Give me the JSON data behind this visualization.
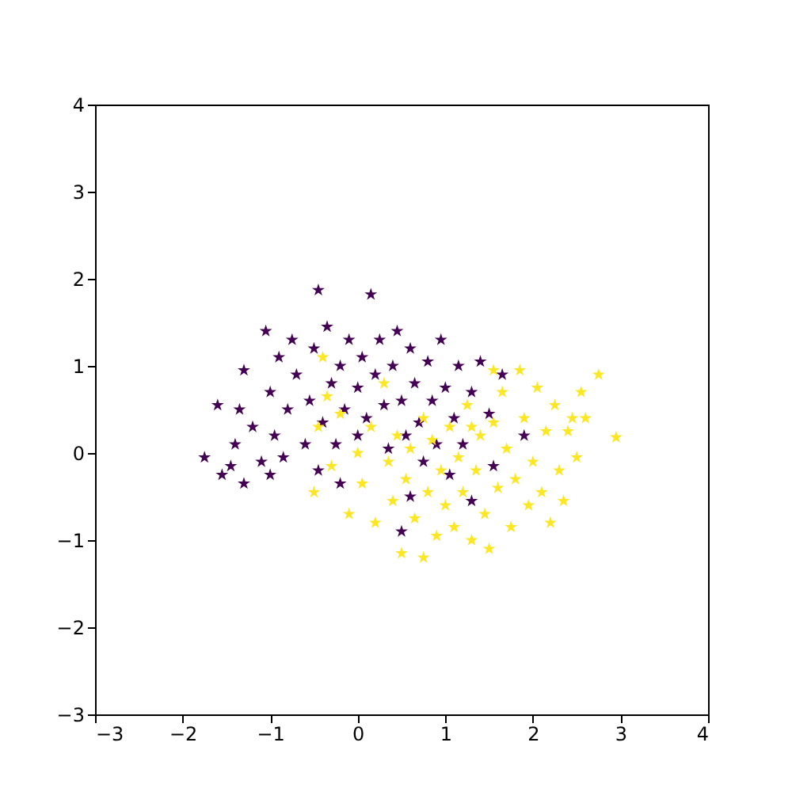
{
  "chart_data": {
    "type": "scatter",
    "marker": "star",
    "grid": false,
    "xlim": [
      -3,
      4
    ],
    "ylim": [
      -3,
      4
    ],
    "xticks": [
      -3,
      -2,
      -1,
      0,
      1,
      2,
      3,
      4
    ],
    "yticks": [
      -3,
      -2,
      -1,
      0,
      1,
      2,
      3,
      4
    ],
    "series": [
      {
        "color": "#440154",
        "x": [
          -1.75,
          -1.6,
          -1.55,
          -1.45,
          -1.3,
          -1.4,
          -1.35,
          -1.3,
          -1.2,
          -1.1,
          -1.05,
          -1.0,
          -0.95,
          -0.9,
          -0.85,
          -0.8,
          -0.75,
          -0.7,
          -0.6,
          -0.55,
          -0.5,
          -0.45,
          -0.45,
          -0.4,
          -0.35,
          -0.3,
          -0.25,
          -0.2,
          -0.15,
          -0.1,
          0.0,
          0.0,
          0.05,
          0.1,
          0.15,
          0.2,
          0.25,
          0.3,
          0.35,
          0.4,
          0.45,
          0.5,
          0.55,
          0.6,
          0.65,
          0.7,
          0.75,
          0.8,
          0.85,
          0.9,
          0.95,
          1.0,
          1.05,
          1.1,
          1.15,
          1.2,
          1.3,
          1.4,
          1.5,
          1.55,
          1.65,
          0.6,
          0.5,
          1.3,
          1.9,
          -1.0,
          -0.2
        ],
        "values": [
          -0.05,
          0.55,
          -0.25,
          -0.15,
          -0.35,
          0.1,
          0.5,
          0.95,
          0.3,
          -0.1,
          1.4,
          0.7,
          0.2,
          1.1,
          -0.05,
          0.5,
          1.3,
          0.9,
          0.1,
          0.6,
          1.2,
          1.87,
          -0.2,
          0.35,
          1.45,
          0.8,
          0.1,
          1.0,
          0.5,
          1.3,
          0.2,
          0.75,
          1.1,
          0.4,
          1.82,
          0.9,
          1.3,
          0.55,
          0.05,
          1.0,
          1.4,
          0.6,
          0.2,
          1.2,
          0.8,
          0.35,
          -0.1,
          1.05,
          0.6,
          0.1,
          1.3,
          0.75,
          -0.25,
          0.4,
          1.0,
          0.1,
          0.7,
          1.05,
          0.45,
          -0.15,
          0.9,
          -0.5,
          -0.9,
          -0.55,
          0.2,
          -0.25,
          -0.35
        ]
      },
      {
        "color": "#fde725",
        "x": [
          -0.5,
          -0.4,
          -0.35,
          -0.45,
          -0.3,
          -0.2,
          -0.1,
          0.0,
          0.05,
          0.15,
          0.2,
          0.3,
          0.35,
          0.4,
          0.45,
          0.5,
          0.55,
          0.6,
          0.65,
          0.75,
          0.8,
          0.85,
          0.9,
          0.95,
          1.0,
          1.05,
          1.1,
          1.15,
          1.2,
          1.25,
          1.3,
          1.35,
          1.4,
          1.45,
          1.5,
          1.55,
          1.6,
          1.65,
          1.7,
          1.75,
          1.8,
          1.85,
          1.9,
          1.95,
          2.0,
          2.05,
          2.1,
          2.15,
          2.2,
          2.25,
          2.3,
          2.35,
          2.4,
          2.45,
          2.5,
          2.55,
          2.6,
          2.75,
          2.95,
          1.55,
          0.75,
          1.3
        ],
        "values": [
          -0.45,
          1.1,
          0.65,
          0.3,
          -0.15,
          0.45,
          -0.7,
          0.0,
          -0.35,
          0.3,
          -0.8,
          0.8,
          -0.1,
          -0.55,
          0.2,
          -1.15,
          -0.3,
          0.05,
          -0.75,
          -1.2,
          -0.45,
          0.15,
          -0.95,
          -0.2,
          -0.6,
          0.3,
          -0.85,
          -0.05,
          -0.45,
          0.55,
          -1.0,
          -0.2,
          0.2,
          -0.7,
          -1.1,
          0.35,
          -0.4,
          0.7,
          0.05,
          -0.85,
          -0.3,
          0.95,
          0.4,
          -0.6,
          -0.1,
          0.75,
          -0.45,
          0.25,
          -0.8,
          0.55,
          -0.2,
          -0.55,
          0.25,
          0.4,
          -0.05,
          0.7,
          0.4,
          0.9,
          0.18,
          0.95,
          0.4,
          0.3
        ]
      }
    ]
  }
}
